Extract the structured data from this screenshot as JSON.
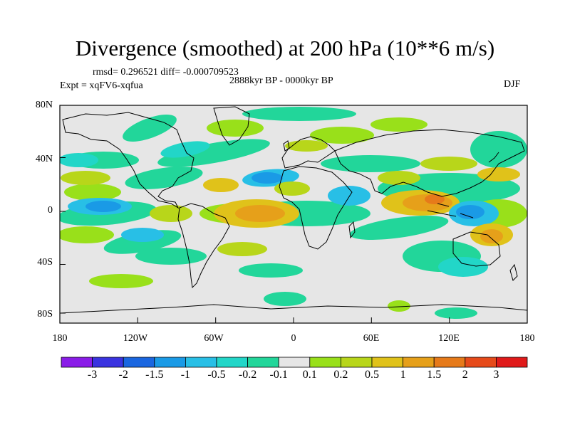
{
  "title": "Divergence (smoothed) at 200 hPa (10**6 m/s)",
  "rmsd_line": "rmsd= 0.296521 diff= -0.000709523",
  "period": "2888kyr BP - 0000kyr BP",
  "experiment": "Expt = xqFV6-xqfua",
  "season": "DJF",
  "lat_labels": [
    "80N",
    "40N",
    "0",
    "40S",
    "80S"
  ],
  "lon_labels": [
    "180",
    "120W",
    "60W",
    "0",
    "60E",
    "120E",
    "180"
  ],
  "colorbar": {
    "labels": [
      "-3",
      "-2",
      "-1.5",
      "-1",
      "-0.5",
      "-0.2",
      "-0.1",
      "0.1",
      "0.2",
      "0.5",
      "1",
      "1.5",
      "2",
      "3"
    ],
    "colors": [
      "#8a1ce8",
      "#3a33e0",
      "#1a66e0",
      "#1a9ae6",
      "#28bfe6",
      "#22d6c8",
      "#22d69a",
      "#e6e6e6",
      "#99e01a",
      "#b8d61a",
      "#e0c21a",
      "#e6a01a",
      "#e67a1a",
      "#e64a1a",
      "#e01a1a"
    ]
  },
  "map_colors": {
    "background": "#e6e6e6",
    "neg_weak": "#22d69a",
    "neg_mid": "#22d6c8",
    "neg_strong": "#28bfe6",
    "neg_deep": "#1a9ae6",
    "pos_weak": "#99e01a",
    "pos_mid": "#b8d61a",
    "pos_strong": "#e0c21a",
    "pos_deep": "#e6a01a",
    "pos_max": "#e67a1a",
    "coast": "#000000"
  }
}
